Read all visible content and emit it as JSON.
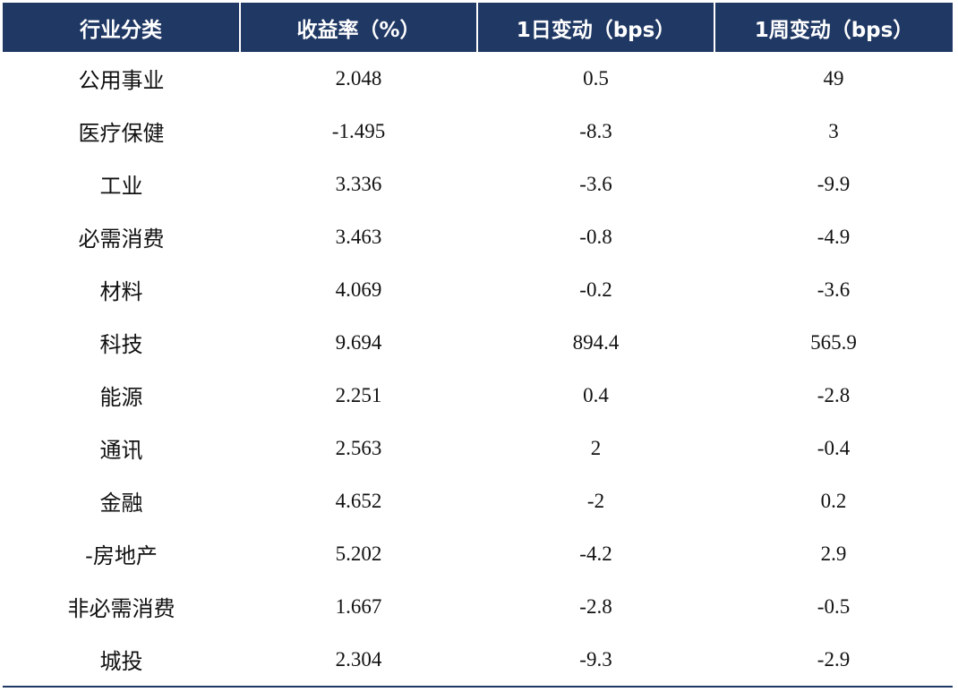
{
  "table": {
    "headers": [
      "行业分类",
      "收益率（%）",
      "1日变动（bps）",
      "1周变动（bps）"
    ],
    "rows": [
      [
        "公用事业",
        "2.048",
        "0.5",
        "49"
      ],
      [
        "医疗保健",
        "-1.495",
        "-8.3",
        "3"
      ],
      [
        "工业",
        "3.336",
        "-3.6",
        "-9.9"
      ],
      [
        "必需消费",
        "3.463",
        "-0.8",
        "-4.9"
      ],
      [
        "材料",
        "4.069",
        "-0.2",
        "-3.6"
      ],
      [
        "科技",
        "9.694",
        "894.4",
        "565.9"
      ],
      [
        "能源",
        "2.251",
        "0.4",
        "-2.8"
      ],
      [
        "通讯",
        "2.563",
        "2",
        "-0.4"
      ],
      [
        "金融",
        "4.652",
        "-2",
        "0.2"
      ],
      [
        "-房地产",
        "5.202",
        "-4.2",
        "2.9"
      ],
      [
        "非必需消费",
        "1.667",
        "-2.8",
        "-0.5"
      ],
      [
        "城投",
        "2.304",
        "-9.3",
        "-2.9"
      ]
    ]
  }
}
